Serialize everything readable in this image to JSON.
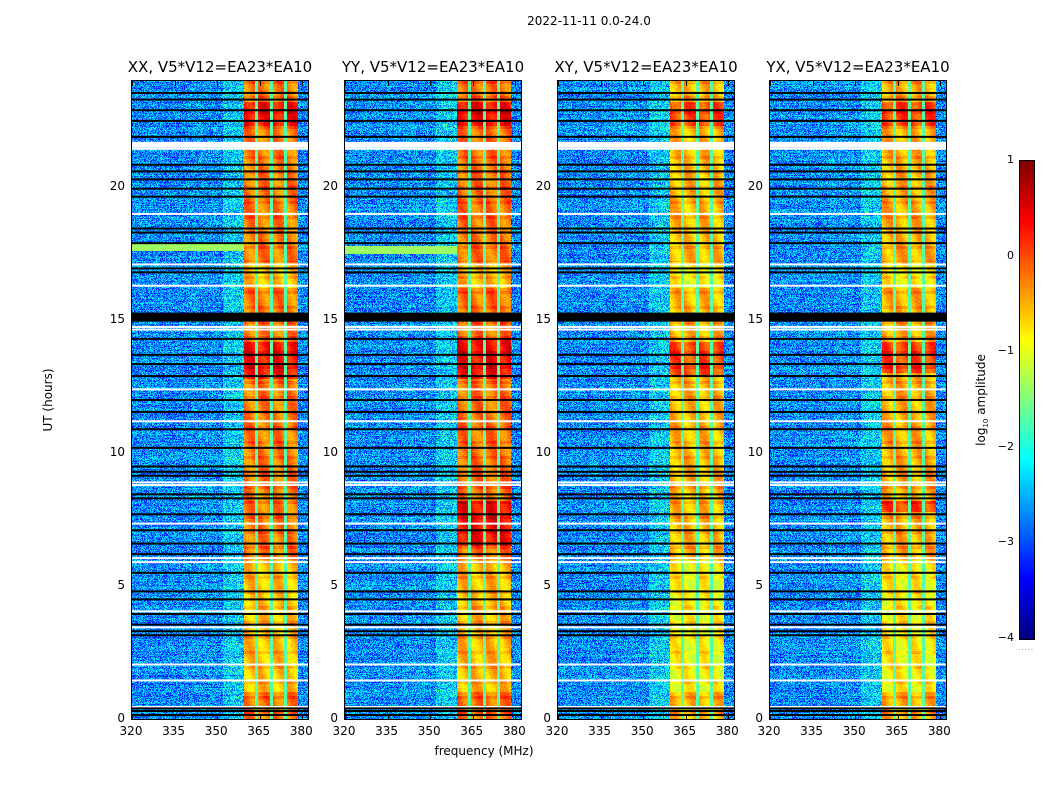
{
  "figure": {
    "suptitle": "2022-11-11 0.0-24.0",
    "xlabel": "frequency (MHz)",
    "ylabel": "UT (hours)",
    "colorbar": {
      "label_prefix": "log",
      "label_sub": "10",
      "label_suffix": " amplitude",
      "ticks": [
        "1",
        "0",
        "−1",
        "−2",
        "−3",
        "−4"
      ],
      "range": [
        -4,
        1
      ],
      "colormap": "jet"
    }
  },
  "chart_data": {
    "type": "heatmap",
    "title": "2022-11-11 0.0-24.0",
    "xlabel": "frequency (MHz)",
    "ylabel": "UT (hours)",
    "xlim": [
      320,
      382
    ],
    "ylim": [
      0,
      24
    ],
    "x_ticks": [
      "320",
      "335",
      "350",
      "365",
      "380"
    ],
    "y_ticks": [
      "0",
      "5",
      "10",
      "15",
      "20"
    ],
    "colorbar_label": "log10 amplitude",
    "zlim": [
      -4,
      1
    ],
    "colormap": "jet",
    "background_level": -2.7,
    "signal_band_MHz": [
      359.5,
      378.5
    ],
    "signal_subbands_MHz": [
      [
        359.5,
        363.5
      ],
      [
        364.5,
        368.5
      ],
      [
        369.5,
        373.5
      ],
      [
        374.5,
        378.5
      ]
    ],
    "faint_edge_band_MHz": [
      352,
      359.5
    ],
    "flagged_white_rows_hours": [
      0.45,
      1.45,
      2.05,
      3.45,
      4.05,
      5.9,
      6.05,
      7.35,
      8.8,
      8.9,
      11.2,
      12.4,
      14.65,
      14.75,
      16.3,
      17.1,
      19.0,
      21.45,
      21.55,
      21.65
    ],
    "flagged_black_rows_hours": [
      0.15,
      0.3,
      0.4,
      3.15,
      3.3,
      3.55,
      3.95,
      4.5,
      4.8,
      5.5,
      6.2,
      6.6,
      7.1,
      7.7,
      8.3,
      8.45,
      9.15,
      9.3,
      9.5,
      10.2,
      10.9,
      11.55,
      12.0,
      12.9,
      13.35,
      13.7,
      14.3,
      15.15,
      15.25,
      16.8,
      16.95,
      17.9,
      18.3,
      18.45,
      19.65,
      19.95,
      20.3,
      20.6,
      20.85,
      21.9,
      22.5,
      22.9,
      23.3,
      23.55
    ],
    "series": [
      {
        "name": "XX, V5*V12=EA23*EA10",
        "signal_level": 0.15,
        "peak_hours": [
          [
            22.3,
            23.2
          ],
          [
            12.8,
            14.2
          ]
        ],
        "green_row_hours": [
          17.6,
          17.85
        ]
      },
      {
        "name": "YY, V5*V12=EA23*EA10",
        "signal_level": 0.2,
        "peak_hours": [
          [
            22.3,
            23.2
          ],
          [
            12.8,
            14.3
          ],
          [
            6.5,
            8.2
          ]
        ],
        "green_row_hours": [
          17.5,
          17.8
        ]
      },
      {
        "name": "XY, V5*V12=EA23*EA10",
        "signal_level": -0.15,
        "peak_hours": [
          [
            22.3,
            23.2
          ],
          [
            12.9,
            14.2
          ]
        ],
        "green_row_hours": null
      },
      {
        "name": "YX, V5*V12=EA23*EA10",
        "signal_level": -0.1,
        "peak_hours": [
          [
            22.3,
            23.2
          ],
          [
            13.0,
            14.2
          ],
          [
            7.8,
            8.2
          ]
        ],
        "green_row_hours": null
      }
    ]
  }
}
